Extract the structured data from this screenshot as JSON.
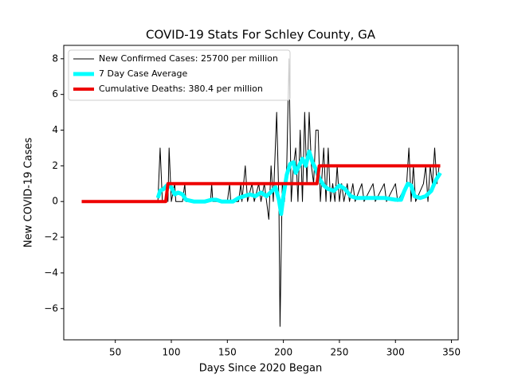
{
  "chart_data": {
    "type": "line",
    "title": "COVID-19 Stats For Schley County, GA",
    "x_label": "Days Since 2020 Began",
    "y_label": "New COVID-19 Cases",
    "xlim": [
      4,
      356
    ],
    "ylim": [
      -7.75,
      8.75
    ],
    "xticks": [
      50,
      100,
      150,
      200,
      250,
      300,
      350
    ],
    "yticks": [
      {
        "value": -6,
        "label": "−6"
      },
      {
        "value": -4,
        "label": "−4"
      },
      {
        "value": -2,
        "label": "−2"
      },
      0,
      2,
      4,
      6,
      8
    ],
    "grid": false,
    "legend_position": "upper left",
    "series": [
      {
        "name": "New Confirmed Cases: 25700 per million",
        "color": "#000000",
        "line_width": 1,
        "x": [
          20,
          88,
          90,
          92,
          95,
          96,
          97,
          98,
          100,
          103,
          104,
          110,
          112,
          113,
          135,
          136,
          137,
          150,
          152,
          153,
          160,
          162,
          163,
          166,
          168,
          172,
          174,
          178,
          180,
          183,
          185,
          187,
          189,
          191,
          194,
          196,
          197,
          199,
          201,
          203,
          205,
          207,
          209,
          211,
          213,
          215,
          217,
          219,
          221,
          223,
          225,
          227,
          229,
          231,
          233,
          236,
          238,
          240,
          242,
          244,
          246,
          248,
          250,
          252,
          254,
          257,
          259,
          262,
          264,
          270,
          272,
          280,
          282,
          290,
          292,
          300,
          302,
          310,
          312,
          314,
          316,
          318,
          325,
          327,
          329,
          331,
          333,
          335,
          337,
          339
        ],
        "values": [
          0,
          0,
          3,
          0,
          0,
          1,
          0,
          3,
          0,
          1,
          0,
          0,
          1,
          0,
          0,
          1,
          0,
          0,
          1,
          0,
          0,
          1,
          0,
          2,
          0,
          1,
          0,
          1,
          0,
          1,
          0,
          -1,
          2,
          0,
          5,
          0,
          -7,
          1,
          0,
          2,
          8,
          0,
          2,
          3,
          0,
          4,
          0,
          5,
          1,
          5,
          2,
          1,
          4,
          4,
          0,
          3,
          0,
          3,
          0,
          1,
          0,
          2,
          0,
          1,
          0,
          1,
          0,
          1,
          0,
          1,
          0,
          1,
          0,
          1,
          0,
          1,
          0,
          1,
          3,
          0,
          2,
          0,
          1,
          2,
          0,
          2,
          1,
          3,
          1,
          2
        ]
      },
      {
        "name": "7 Day Case Average",
        "color": "#00ffff",
        "line_width": 5,
        "x": [
          88,
          90,
          93,
          96,
          100,
          103,
          106,
          110,
          113,
          120,
          130,
          136,
          140,
          145,
          155,
          160,
          165,
          170,
          175,
          180,
          185,
          190,
          193,
          196,
          198,
          200,
          203,
          206,
          209,
          211,
          214,
          217,
          220,
          223,
          226,
          229,
          232,
          236,
          240,
          245,
          250,
          255,
          260,
          265,
          270,
          280,
          290,
          300,
          305,
          308,
          311,
          314,
          317,
          322,
          327,
          332,
          336,
          340
        ],
        "values": [
          0.2,
          0.6,
          0.7,
          0.9,
          0.8,
          0.4,
          0.5,
          0.4,
          0.1,
          0,
          0,
          0.1,
          0.1,
          0,
          0,
          0.2,
          0.3,
          0.4,
          0.3,
          0.5,
          0.3,
          0.6,
          0.8,
          0.1,
          -0.7,
          0.3,
          1.5,
          2.1,
          2.2,
          1.6,
          2.0,
          2.4,
          2.0,
          2.8,
          2.2,
          1.8,
          1.3,
          0.9,
          0.7,
          0.6,
          0.9,
          0.7,
          0.3,
          0.2,
          0.2,
          0.2,
          0.2,
          0.1,
          0.1,
          0.6,
          1.0,
          0.9,
          0.3,
          0.2,
          0.3,
          0.6,
          1.2,
          1.6
        ]
      },
      {
        "name": "Cumulative Deaths: 380.4 per million",
        "color": "#ee0000",
        "line_width": 4,
        "x": [
          20,
          95,
          97,
          230,
          232,
          340
        ],
        "values": [
          0,
          0,
          1,
          1,
          2,
          2
        ]
      }
    ]
  }
}
